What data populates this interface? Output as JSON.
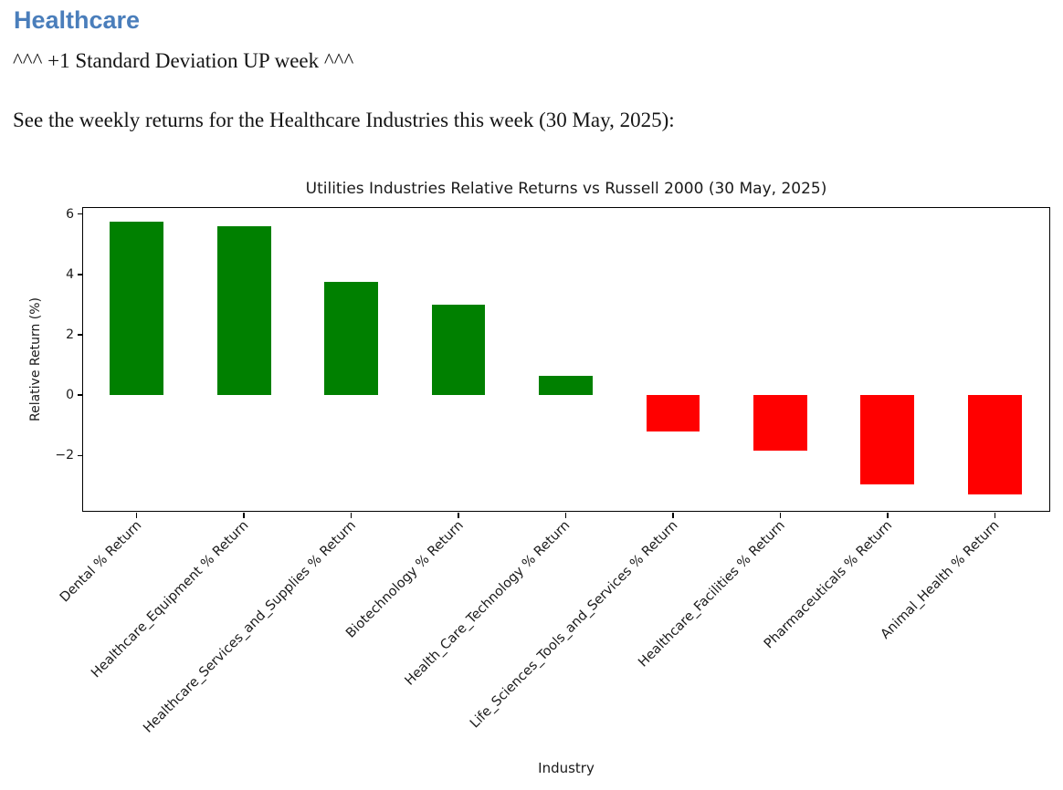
{
  "document": {
    "heading": "Healthcare",
    "note": "^^^ +1 Standard Deviation UP week ^^^",
    "intro": "See the weekly returns for the Healthcare Industries this week (30 May, 2025):"
  },
  "colors": {
    "heading_blue": "#4a7ebb",
    "positive_green": "#008000",
    "negative_red": "#ff0000"
  },
  "chart_data": {
    "type": "bar",
    "title": "Utilities Industries Relative Returns vs Russell 2000 (30 May, 2025)",
    "xlabel": "Industry",
    "ylabel": "Relative Return (%)",
    "categories": [
      "Dental % Return",
      "Healthcare_Equipment % Return",
      "Healthcare_Services_and_Supplies % Return",
      "Biotechnology % Return",
      "Health_Care_Technology % Return",
      "Life_Sciences_Tools_and_Services % Return",
      "Healthcare_Facilities % Return",
      "Pharmaceuticals % Return",
      "Animal_Health % Return"
    ],
    "values": [
      5.75,
      5.6,
      3.75,
      3.0,
      0.65,
      -1.2,
      -1.85,
      -2.95,
      -3.3
    ],
    "ylim": [
      -3.8,
      6.2
    ],
    "yticks": [
      -2,
      0,
      2,
      4,
      6
    ],
    "bar_width_fraction": 0.5,
    "positive_color": "#008000",
    "negative_color": "#ff0000",
    "grid": false,
    "legend": "none",
    "x_tick_rotation_deg": 45
  }
}
